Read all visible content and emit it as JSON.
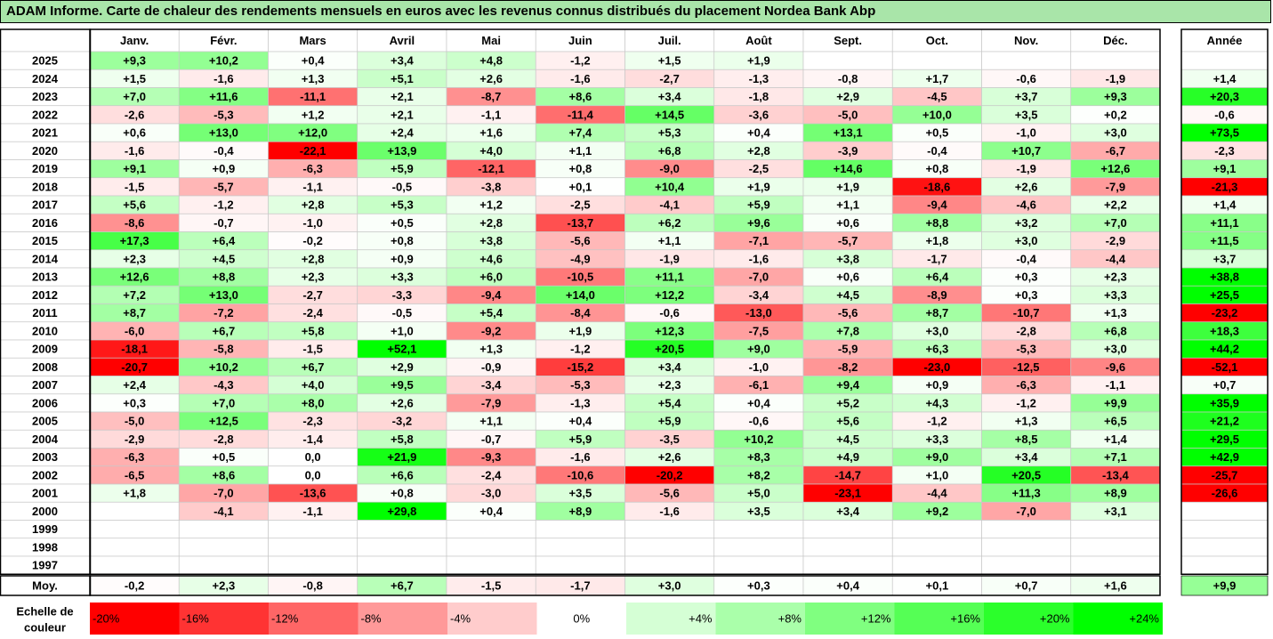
{
  "title": "ADAM Informe. Carte de chaleur des rendements mensuels en euros avec les revenus connus distribués du placement Nordea Bank Abp",
  "chart_data": {
    "type": "heatmap",
    "columns": [
      "Janv.",
      "Févr.",
      "Mars",
      "Avril",
      "Mai",
      "Juin",
      "Juil.",
      "Août",
      "Sept.",
      "Oct.",
      "Nov.",
      "Déc."
    ],
    "annual_header": "Année",
    "avg_label": "Moy.",
    "rows": [
      {
        "year": "2025",
        "values": [
          "+9,3",
          "+10,2",
          "+0,4",
          "+3,4",
          "+4,8",
          "-1,2",
          "+1,5",
          "+1,9",
          "",
          "",
          "",
          ""
        ],
        "annual": ""
      },
      {
        "year": "2024",
        "values": [
          "+1,5",
          "-1,6",
          "+1,3",
          "+5,1",
          "+2,6",
          "-1,6",
          "-2,7",
          "-1,3",
          "-0,8",
          "+1,7",
          "-0,6",
          "-1,9"
        ],
        "annual": "+1,4"
      },
      {
        "year": "2023",
        "values": [
          "+7,0",
          "+11,6",
          "-11,1",
          "+2,1",
          "-8,7",
          "+8,6",
          "+3,4",
          "-1,8",
          "+2,9",
          "-4,5",
          "+3,7",
          "+9,3"
        ],
        "annual": "+20,3"
      },
      {
        "year": "2022",
        "values": [
          "-2,6",
          "-5,3",
          "+1,2",
          "+2,1",
          "-1,1",
          "-11,4",
          "+14,5",
          "-3,6",
          "-5,0",
          "+10,0",
          "+3,5",
          "+0,2"
        ],
        "annual": "-0,6"
      },
      {
        "year": "2021",
        "values": [
          "+0,6",
          "+13,0",
          "+12,0",
          "+2,4",
          "+1,6",
          "+7,4",
          "+5,3",
          "+0,4",
          "+13,1",
          "+0,5",
          "-1,0",
          "+3,0"
        ],
        "annual": "+73,5"
      },
      {
        "year": "2020",
        "values": [
          "-1,6",
          "-0,4",
          "-22,1",
          "+13,9",
          "+4,0",
          "+1,1",
          "+6,8",
          "+2,8",
          "-3,9",
          "-0,4",
          "+10,7",
          "-6,7"
        ],
        "annual": "-2,3"
      },
      {
        "year": "2019",
        "values": [
          "+9,1",
          "+0,9",
          "-6,3",
          "+5,9",
          "-12,1",
          "+0,8",
          "-9,0",
          "-2,5",
          "+14,6",
          "+0,8",
          "-1,9",
          "+12,6"
        ],
        "annual": "+9,1"
      },
      {
        "year": "2018",
        "values": [
          "-1,5",
          "-5,7",
          "-1,1",
          "-0,5",
          "-3,8",
          "+0,1",
          "+10,4",
          "+1,9",
          "+1,9",
          "-18,6",
          "+2,6",
          "-7,9"
        ],
        "annual": "-21,3"
      },
      {
        "year": "2017",
        "values": [
          "+5,6",
          "-1,2",
          "+2,8",
          "+5,3",
          "+1,2",
          "-2,5",
          "-4,1",
          "+5,9",
          "+1,1",
          "-9,4",
          "-4,6",
          "+2,2"
        ],
        "annual": "+1,4"
      },
      {
        "year": "2016",
        "values": [
          "-8,6",
          "-0,7",
          "-1,0",
          "+0,5",
          "+2,8",
          "-13,7",
          "+6,2",
          "+9,6",
          "+0,6",
          "+8,8",
          "+3,2",
          "+7,0"
        ],
        "annual": "+11,1"
      },
      {
        "year": "2015",
        "values": [
          "+17,3",
          "+6,4",
          "-0,2",
          "+0,8",
          "+3,8",
          "-5,6",
          "+1,1",
          "-7,1",
          "-5,7",
          "+1,8",
          "+3,0",
          "-2,9"
        ],
        "annual": "+11,5"
      },
      {
        "year": "2014",
        "values": [
          "+2,3",
          "+4,5",
          "+2,8",
          "+0,9",
          "+4,6",
          "-4,9",
          "-1,9",
          "-1,6",
          "+3,8",
          "-1,7",
          "-0,4",
          "-4,4"
        ],
        "annual": "+3,7"
      },
      {
        "year": "2013",
        "values": [
          "+12,6",
          "+8,8",
          "+2,3",
          "+3,3",
          "+6,0",
          "-10,5",
          "+11,1",
          "-7,0",
          "+0,6",
          "+6,4",
          "+0,3",
          "+2,3"
        ],
        "annual": "+38,8"
      },
      {
        "year": "2012",
        "values": [
          "+7,2",
          "+13,0",
          "-2,7",
          "-3,3",
          "-9,4",
          "+14,0",
          "+12,2",
          "-3,4",
          "+4,5",
          "-8,9",
          "+0,3",
          "+3,3"
        ],
        "annual": "+25,5"
      },
      {
        "year": "2011",
        "values": [
          "+8,7",
          "-7,2",
          "-2,4",
          "-0,5",
          "+5,4",
          "-8,4",
          "-0,6",
          "-13,0",
          "-5,6",
          "+8,7",
          "-10,7",
          "+1,3"
        ],
        "annual": "-23,2"
      },
      {
        "year": "2010",
        "values": [
          "-6,0",
          "+6,7",
          "+5,8",
          "+1,0",
          "-9,2",
          "+1,9",
          "+12,3",
          "-7,5",
          "+7,8",
          "+3,0",
          "-2,8",
          "+6,8"
        ],
        "annual": "+18,3"
      },
      {
        "year": "2009",
        "values": [
          "-18,1",
          "-5,8",
          "-1,5",
          "+52,1",
          "+1,3",
          "-1,2",
          "+20,5",
          "+9,0",
          "-5,9",
          "+6,3",
          "-5,3",
          "+3,0"
        ],
        "annual": "+44,2"
      },
      {
        "year": "2008",
        "values": [
          "-20,7",
          "+10,2",
          "+6,7",
          "+2,9",
          "-0,9",
          "-15,2",
          "+3,4",
          "-1,0",
          "-8,2",
          "-23,0",
          "-12,5",
          "-9,6"
        ],
        "annual": "-52,1"
      },
      {
        "year": "2007",
        "values": [
          "+2,4",
          "-4,3",
          "+4,0",
          "+9,5",
          "-3,4",
          "-5,3",
          "+2,3",
          "-6,1",
          "+9,4",
          "+0,9",
          "-6,3",
          "-1,1"
        ],
        "annual": "+0,7"
      },
      {
        "year": "2006",
        "values": [
          "+0,3",
          "+7,0",
          "+8,0",
          "+2,6",
          "-7,9",
          "-1,3",
          "+5,4",
          "+0,4",
          "+5,2",
          "+4,3",
          "-1,2",
          "+9,9"
        ],
        "annual": "+35,9"
      },
      {
        "year": "2005",
        "values": [
          "-5,0",
          "+12,5",
          "-2,3",
          "-3,2",
          "+1,1",
          "+0,4",
          "+5,9",
          "-0,6",
          "+5,6",
          "-1,2",
          "+1,3",
          "+6,5"
        ],
        "annual": "+21,2"
      },
      {
        "year": "2004",
        "values": [
          "-2,9",
          "-2,8",
          "-1,4",
          "+5,8",
          "-0,7",
          "+5,9",
          "-3,5",
          "+10,2",
          "+4,5",
          "+3,3",
          "+8,5",
          "+1,4"
        ],
        "annual": "+29,5"
      },
      {
        "year": "2003",
        "values": [
          "-6,3",
          "+0,5",
          "0,0",
          "+21,9",
          "-9,3",
          "-1,6",
          "+2,6",
          "+8,3",
          "+4,9",
          "+9,0",
          "+3,4",
          "+7,1"
        ],
        "annual": "+42,9"
      },
      {
        "year": "2002",
        "values": [
          "-6,5",
          "+8,6",
          "0,0",
          "+6,6",
          "-2,4",
          "-10,6",
          "-20,2",
          "+8,2",
          "-14,7",
          "+1,0",
          "+20,5",
          "-13,4"
        ],
        "annual": "-25,7"
      },
      {
        "year": "2001",
        "values": [
          "+1,8",
          "-7,0",
          "-13,6",
          "+0,8",
          "-3,0",
          "+3,5",
          "-5,6",
          "+5,0",
          "-23,1",
          "-4,4",
          "+11,3",
          "+8,9"
        ],
        "annual": "-26,6"
      },
      {
        "year": "2000",
        "values": [
          "",
          "-4,1",
          "-1,1",
          "+29,8",
          "+0,4",
          "+8,9",
          "-1,6",
          "+3,5",
          "+3,4",
          "+9,2",
          "-7,0",
          "+3,1"
        ],
        "annual": ""
      },
      {
        "year": "1999",
        "values": [
          "",
          "",
          "",
          "",
          "",
          "",
          "",
          "",
          "",
          "",
          "",
          ""
        ],
        "annual": ""
      },
      {
        "year": "1998",
        "values": [
          "",
          "",
          "",
          "",
          "",
          "",
          "",
          "",
          "",
          "",
          "",
          ""
        ],
        "annual": ""
      },
      {
        "year": "1997",
        "values": [
          "",
          "",
          "",
          "",
          "",
          "",
          "",
          "",
          "",
          "",
          "",
          ""
        ],
        "annual": ""
      }
    ],
    "averages": [
      "-0,2",
      "+2,3",
      "-0,8",
      "+6,7",
      "-1,5",
      "-1,7",
      "+3,0",
      "+0,3",
      "+0,4",
      "+0,1",
      "+0,7",
      "+1,6"
    ],
    "annual_average": "+9,9",
    "legend": {
      "label_line1": "Echelle de",
      "label_line2": "couleur",
      "stops": [
        "-20%",
        "-16%",
        "-12%",
        "-8%",
        "-4%",
        "0%",
        "+4%",
        "+8%",
        "+12%",
        "+16%",
        "+20%",
        "+24%"
      ],
      "stop_values": [
        -20,
        -16,
        -12,
        -8,
        -4,
        0,
        4,
        8,
        12,
        16,
        20,
        24
      ]
    },
    "color_scale": {
      "negative": "#ff0000",
      "neutral": "#ffffff",
      "positive": "#00ff00",
      "min": -20,
      "max": 24
    }
  }
}
